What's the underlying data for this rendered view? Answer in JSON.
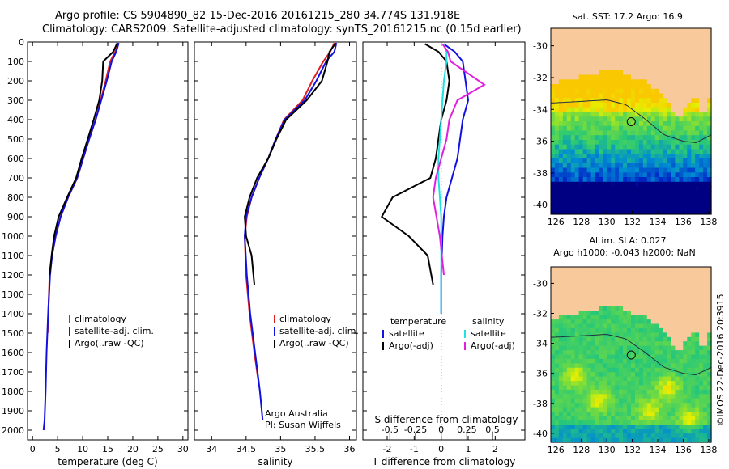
{
  "header": {
    "line1": "Argo profile: CS 5904890_82 15-Dec-2016 20161215_280 34.774S 131.918E",
    "line2": "Climatology: CARS2009. Satellite-adjusted climatology: synTS_20161215.nc (0.15d earlier)"
  },
  "side_label": "©IMOS 22-Dec-2016 20:3915",
  "colors": {
    "climatology": "#e02020",
    "satellite": "#1010e0",
    "argo": "#000000",
    "sat_s": "#20e0e0",
    "argo_s": "#e020e0",
    "land": "#f7c99b"
  },
  "chart_data": [
    {
      "type": "line",
      "xlabel": "temperature (deg C)",
      "xlim": [
        -1,
        31
      ],
      "xticks": [
        0,
        5,
        10,
        15,
        20,
        25,
        30
      ],
      "ylim": [
        0,
        2050
      ],
      "yticks": [
        0,
        100,
        200,
        300,
        400,
        500,
        600,
        700,
        800,
        900,
        1000,
        1100,
        1200,
        1300,
        1400,
        1500,
        1600,
        1700,
        1800,
        1900,
        2000
      ],
      "legend": [
        "climatology",
        "satellite-adj. clim.",
        "Argo(..raw -QC)"
      ],
      "series": [
        {
          "name": "climatology",
          "color": "#e02020",
          "x": [
            17.1,
            16.5,
            15.5,
            14.6,
            13.6,
            12.6,
            11.3,
            10.1,
            8.9,
            7.1,
            5.6,
            4.6,
            3.9,
            3.4,
            3.0
          ],
          "y": [
            5,
            50,
            100,
            200,
            300,
            400,
            500,
            600,
            700,
            800,
            900,
            1000,
            1100,
            1200,
            1500
          ]
        },
        {
          "name": "satellite-adj. clim.",
          "color": "#1010e0",
          "x": [
            17.2,
            16.7,
            15.8,
            14.8,
            13.7,
            12.6,
            11.3,
            10.1,
            8.9,
            7.1,
            5.6,
            4.6,
            3.9,
            3.5,
            3.1,
            2.8,
            2.6,
            2.4,
            2.2
          ],
          "y": [
            5,
            50,
            100,
            200,
            300,
            400,
            500,
            600,
            700,
            800,
            900,
            1000,
            1100,
            1200,
            1400,
            1600,
            1800,
            1950,
            2000
          ]
        },
        {
          "name": "Argo(..raw -QC)",
          "color": "#000000",
          "x": [
            16.9,
            16.1,
            14.1,
            13.9,
            13.3,
            12.2,
            11.0,
            9.8,
            8.7,
            6.9,
            5.2,
            4.3,
            3.8,
            3.4
          ],
          "y": [
            5,
            50,
            100,
            200,
            300,
            400,
            500,
            600,
            700,
            800,
            900,
            1000,
            1100,
            1200
          ]
        }
      ]
    },
    {
      "type": "line",
      "xlabel": "salinity",
      "xlim": [
        33.75,
        36.1
      ],
      "xticks": [
        34,
        34.5,
        35,
        35.5,
        36
      ],
      "xticklabels": [
        "34",
        "34.5",
        "35",
        "35.5",
        "36"
      ],
      "ylim": [
        0,
        2050
      ],
      "legend": [
        "climatology",
        "satellite-adj. clim.",
        "Argo(..raw -QC)"
      ],
      "annotation": [
        "Argo Australia",
        "PI: Susan Wijffels"
      ],
      "series": [
        {
          "name": "climatology",
          "color": "#e02020",
          "x": [
            35.78,
            35.72,
            35.62,
            35.46,
            35.32,
            35.05,
            34.93,
            34.82,
            34.69,
            34.58,
            34.51,
            34.48,
            34.5,
            34.55,
            34.62,
            34.68
          ],
          "y": [
            5,
            50,
            100,
            200,
            300,
            400,
            500,
            600,
            700,
            800,
            900,
            1000,
            1200,
            1400,
            1600,
            1750
          ]
        },
        {
          "name": "satellite-adj. clim.",
          "color": "#1010e0",
          "x": [
            35.81,
            35.78,
            35.66,
            35.52,
            35.35,
            35.06,
            34.93,
            34.82,
            34.69,
            34.58,
            34.5,
            34.48,
            34.51,
            34.56,
            34.63,
            34.7,
            34.74
          ],
          "y": [
            5,
            50,
            100,
            200,
            300,
            400,
            500,
            600,
            700,
            800,
            900,
            1000,
            1200,
            1400,
            1600,
            1800,
            1950
          ]
        },
        {
          "name": "Argo(..raw -QC)",
          "color": "#000000",
          "x": [
            35.8,
            35.71,
            35.68,
            35.6,
            35.38,
            35.08,
            34.94,
            34.82,
            34.66,
            34.55,
            34.48,
            34.5,
            34.58,
            34.62
          ],
          "y": [
            5,
            50,
            100,
            200,
            300,
            400,
            500,
            600,
            700,
            800,
            900,
            1000,
            1100,
            1250
          ]
        }
      ]
    },
    {
      "type": "line",
      "xlabel": "T difference from climatology",
      "xlim": [
        -2.9,
        3.1
      ],
      "xticks": [
        -2,
        -1,
        0,
        1,
        2
      ],
      "xticklabels": [
        "-2",
        "-1",
        "0",
        "1",
        "2"
      ],
      "top_axis_label": "S difference from climatology",
      "top_ticks": [
        -0.5,
        -0.25,
        0,
        0.25,
        0.5
      ],
      "top_ticklabels": [
        "-0.5",
        "-0.25",
        "0",
        "0.25",
        "0.5"
      ],
      "ylim": [
        0,
        2050
      ],
      "legend_temperature_title": "temperature",
      "legend_salinity_title": "salinity",
      "legend": [
        "satellite",
        "Argo(-adj)",
        "satellite",
        "Argo(-adj)"
      ],
      "series": [
        {
          "name": "satellite",
          "color": "#1010e0",
          "x": [
            0.1,
            0.5,
            0.8,
            0.9,
            1.0,
            0.8,
            0.7,
            0.6,
            0.4,
            0.2,
            0.1,
            0.05,
            0.0,
            0.0
          ],
          "y": [
            10,
            50,
            100,
            200,
            300,
            400,
            500,
            600,
            700,
            800,
            900,
            1000,
            1200,
            1400
          ]
        },
        {
          "name": "Argo(-adj)",
          "color": "#000000",
          "x": [
            -0.6,
            -0.1,
            0.2,
            0.3,
            0.2,
            0.0,
            -0.1,
            -0.2,
            -0.4,
            -1.8,
            -2.2,
            -1.2,
            -0.5,
            -0.3
          ],
          "y": [
            10,
            50,
            100,
            200,
            300,
            400,
            500,
            600,
            700,
            800,
            900,
            1000,
            1100,
            1250
          ]
        },
        {
          "name": "satellite",
          "color": "#20e0e0",
          "x": [
            0.1,
            0.2,
            0.2,
            0.1,
            0.05,
            0.0,
            -0.05,
            -0.1,
            -0.1,
            0.0,
            0.0,
            0.0
          ],
          "y": [
            10,
            50,
            100,
            200,
            300,
            400,
            500,
            600,
            700,
            900,
            1100,
            1400
          ]
        },
        {
          "name": "Argo(-adj)",
          "color": "#e020e0",
          "x": [
            0.05,
            0.25,
            0.35,
            1.6,
            0.6,
            0.3,
            0.2,
            0.0,
            -0.2,
            -0.3,
            -0.05,
            0.1
          ],
          "y": [
            10,
            50,
            100,
            220,
            300,
            400,
            500,
            600,
            700,
            800,
            1000,
            1200
          ]
        }
      ]
    },
    {
      "type": "heatmap",
      "title": "sat. SST: 17.2 Argo: 16.9",
      "xticks": [
        126,
        128,
        130,
        132,
        134,
        136,
        138
      ],
      "yticks": [
        -30,
        -32,
        -34,
        -36,
        -38,
        -40
      ],
      "xlim": [
        125.6,
        138.2
      ],
      "ylim": [
        -40.6,
        -28.9
      ],
      "argo_position": {
        "lon": 131.918,
        "lat": -34.774
      }
    },
    {
      "type": "heatmap",
      "title": "Altim. SLA: 0.027",
      "subtitle": "Argo h1000: -0.043 h2000: NaN",
      "xticks": [
        126,
        128,
        130,
        132,
        134,
        136,
        138
      ],
      "yticks": [
        -30,
        -32,
        -34,
        -36,
        -38,
        -40
      ],
      "xlim": [
        125.6,
        138.2
      ],
      "ylim": [
        -40.6,
        -28.9
      ],
      "argo_position": {
        "lon": 131.918,
        "lat": -34.774
      }
    }
  ]
}
